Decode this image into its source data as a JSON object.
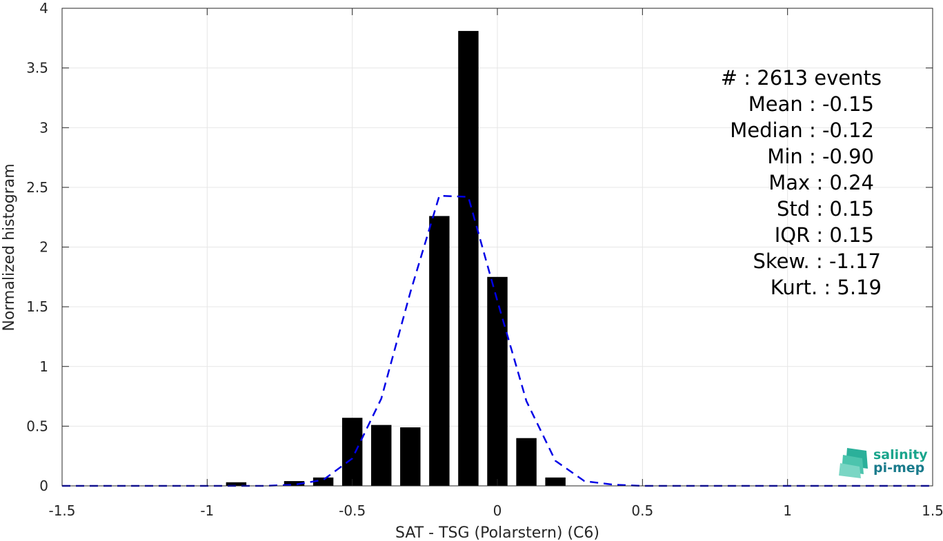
{
  "chart_data": {
    "type": "bar",
    "title": "",
    "xlabel": "SAT - TSG (Polarstern) (C6)",
    "ylabel": "Normalized histogram",
    "xlim": [
      -1.5,
      1.5
    ],
    "ylim": [
      0,
      4
    ],
    "grid": true,
    "x_ticks": [
      -1.5,
      -1,
      -0.5,
      0,
      0.5,
      1,
      1.5
    ],
    "x_tick_labels": [
      "-1.5",
      "-1",
      "-0.5",
      "0",
      "0.5",
      "1",
      "1.5"
    ],
    "y_ticks": [
      0,
      0.5,
      1,
      1.5,
      2,
      2.5,
      3,
      3.5,
      4
    ],
    "y_tick_labels": [
      "0",
      "0.5",
      "1",
      "1.5",
      "2",
      "2.5",
      "3",
      "3.5",
      "4"
    ],
    "bar_width": 0.07,
    "bar_color": "#000000",
    "bars": [
      {
        "x": -0.9,
        "value": 0.03
      },
      {
        "x": -0.7,
        "value": 0.04
      },
      {
        "x": -0.6,
        "value": 0.07
      },
      {
        "x": -0.5,
        "value": 0.57
      },
      {
        "x": -0.4,
        "value": 0.51
      },
      {
        "x": -0.3,
        "value": 0.49
      },
      {
        "x": -0.2,
        "value": 2.26
      },
      {
        "x": -0.1,
        "value": 3.81
      },
      {
        "x": 0.0,
        "value": 1.75
      },
      {
        "x": 0.1,
        "value": 0.4
      },
      {
        "x": 0.2,
        "value": 0.07
      }
    ],
    "fit_curve": {
      "style": "dashed",
      "color": "#0000e6",
      "x": [
        -1.5,
        -1.4,
        -1.3,
        -1.2,
        -1.1,
        -1.0,
        -0.9,
        -0.8,
        -0.7,
        -0.6,
        -0.5,
        -0.4,
        -0.3,
        -0.2,
        -0.1,
        0.0,
        0.1,
        0.2,
        0.3,
        0.4,
        0.5,
        0.6,
        0.7,
        0.8,
        0.9,
        1.0,
        1.1,
        1.2,
        1.3,
        1.4,
        1.5
      ],
      "y": [
        0,
        0,
        0,
        0,
        0,
        0,
        0,
        0,
        0.01,
        0.05,
        0.23,
        0.73,
        1.62,
        2.43,
        2.42,
        1.55,
        0.71,
        0.21,
        0.04,
        0.01,
        0,
        0,
        0,
        0,
        0,
        0,
        0,
        0,
        0,
        0,
        0
      ]
    }
  },
  "stats": [
    {
      "label": "#  : 2613 events"
    },
    {
      "label": "Mean : -0.15"
    },
    {
      "label": "Median : -0.12"
    },
    {
      "label": "Min : -0.90"
    },
    {
      "label": "Max : 0.24"
    },
    {
      "label": "Std : 0.15"
    },
    {
      "label": "IQR : 0.15"
    },
    {
      "label": "Skew. : -1.17"
    },
    {
      "label": "Kurt. : 5.19"
    }
  ],
  "logo": {
    "line1": "salinity",
    "line2": "pi-mep",
    "color1": "#1aa58c",
    "color2": "#1a7b8c"
  }
}
